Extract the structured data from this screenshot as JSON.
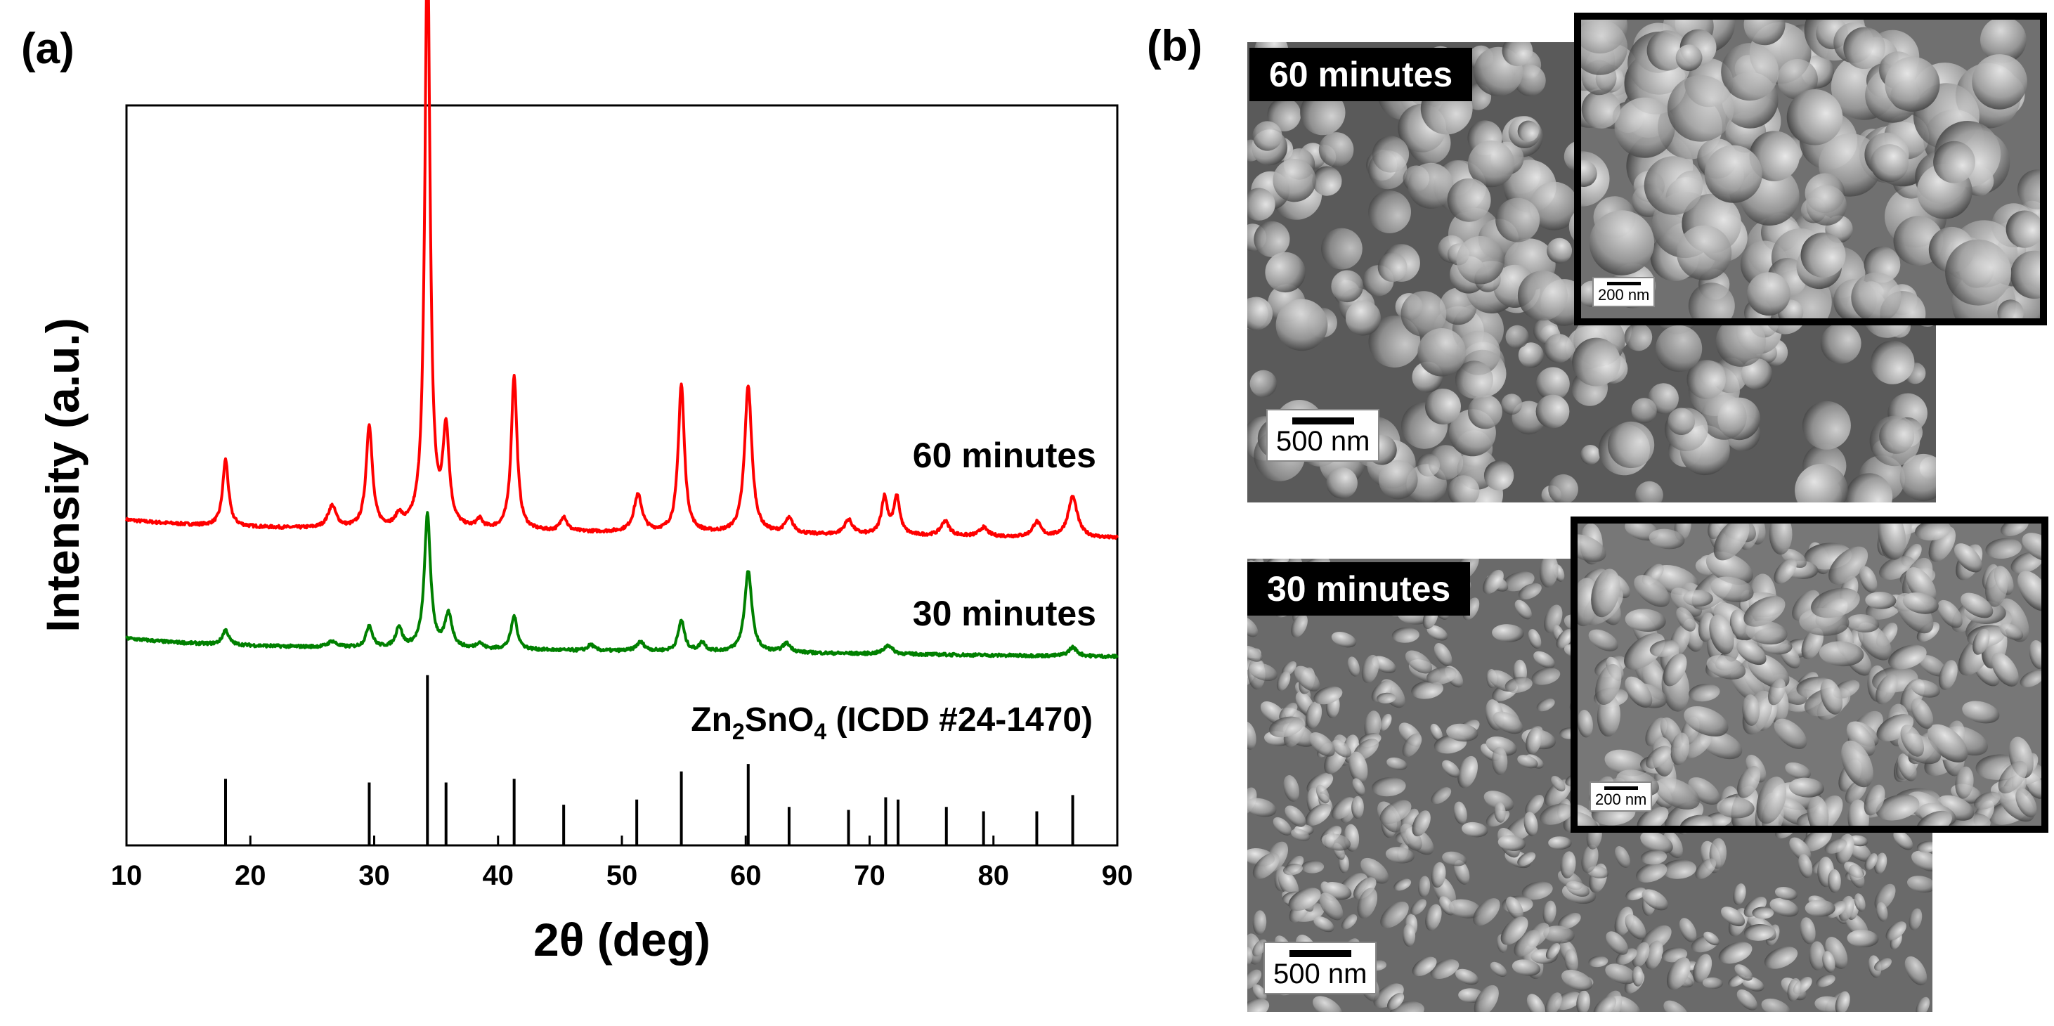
{
  "panel_a_label": "(a)",
  "panel_b_label": "(b)",
  "chart_data": {
    "type": "line",
    "xlabel": "2θ (deg)",
    "ylabel": "Intensity (a.u.)",
    "xlim": [
      10,
      90
    ],
    "xticks": [
      10,
      20,
      30,
      40,
      50,
      60,
      70,
      80,
      90
    ],
    "yticks": [],
    "grid": false,
    "series": [
      {
        "name": "60 minutes",
        "color": "#ff0000",
        "baseline": 0.43,
        "peaks": [
          [
            18.0,
            0.09,
            0.28
          ],
          [
            26.6,
            0.03,
            0.4
          ],
          [
            29.6,
            0.14,
            0.3
          ],
          [
            32.0,
            0.015,
            0.3
          ],
          [
            34.3,
            0.8,
            0.25
          ],
          [
            35.8,
            0.13,
            0.3
          ],
          [
            38.5,
            0.012,
            0.3
          ],
          [
            41.3,
            0.21,
            0.28
          ],
          [
            45.3,
            0.02,
            0.3
          ],
          [
            51.3,
            0.05,
            0.4
          ],
          [
            54.8,
            0.2,
            0.3
          ],
          [
            60.2,
            0.2,
            0.35
          ],
          [
            63.5,
            0.02,
            0.4
          ],
          [
            68.3,
            0.02,
            0.4
          ],
          [
            71.2,
            0.05,
            0.3
          ],
          [
            72.2,
            0.05,
            0.3
          ],
          [
            76.1,
            0.02,
            0.4
          ],
          [
            79.2,
            0.012,
            0.4
          ],
          [
            83.5,
            0.02,
            0.4
          ],
          [
            86.4,
            0.055,
            0.45
          ]
        ]
      },
      {
        "name": "30 minutes",
        "color": "#008000",
        "baseline": 0.27,
        "peaks": [
          [
            18.0,
            0.02,
            0.3
          ],
          [
            26.6,
            0.008,
            0.4
          ],
          [
            29.6,
            0.03,
            0.3
          ],
          [
            32.0,
            0.028,
            0.3
          ],
          [
            34.3,
            0.18,
            0.3
          ],
          [
            36.0,
            0.045,
            0.35
          ],
          [
            38.5,
            0.008,
            0.3
          ],
          [
            41.3,
            0.045,
            0.3
          ],
          [
            47.5,
            0.008,
            0.3
          ],
          [
            51.5,
            0.012,
            0.4
          ],
          [
            54.8,
            0.042,
            0.3
          ],
          [
            56.5,
            0.012,
            0.3
          ],
          [
            60.2,
            0.11,
            0.35
          ],
          [
            63.3,
            0.012,
            0.4
          ],
          [
            71.5,
            0.012,
            0.4
          ],
          [
            86.4,
            0.012,
            0.4
          ]
        ]
      }
    ],
    "reference": {
      "label": "Zn2SnO4 (ICDD #24-1470)",
      "label_parts": [
        "Zn",
        "2",
        "SnO",
        "4",
        " (ICDD #24-1470)"
      ],
      "lines": [
        [
          18.0,
          0.09
        ],
        [
          29.6,
          0.085
        ],
        [
          34.3,
          0.23
        ],
        [
          35.8,
          0.085
        ],
        [
          41.3,
          0.09
        ],
        [
          45.3,
          0.055
        ],
        [
          51.2,
          0.062
        ],
        [
          54.8,
          0.1
        ],
        [
          60.2,
          0.11
        ],
        [
          63.5,
          0.052
        ],
        [
          68.3,
          0.048
        ],
        [
          71.3,
          0.065
        ],
        [
          72.3,
          0.062
        ],
        [
          76.2,
          0.052
        ],
        [
          79.2,
          0.046
        ],
        [
          83.5,
          0.046
        ],
        [
          86.4,
          0.068
        ]
      ]
    }
  },
  "sem_images": {
    "top": {
      "label": "60 minutes",
      "scalebar": "500 nm",
      "inset_scalebar": "200 nm"
    },
    "bottom": {
      "label": "30 minutes",
      "scalebar": "500 nm",
      "inset_scalebar": "200 nm"
    }
  }
}
